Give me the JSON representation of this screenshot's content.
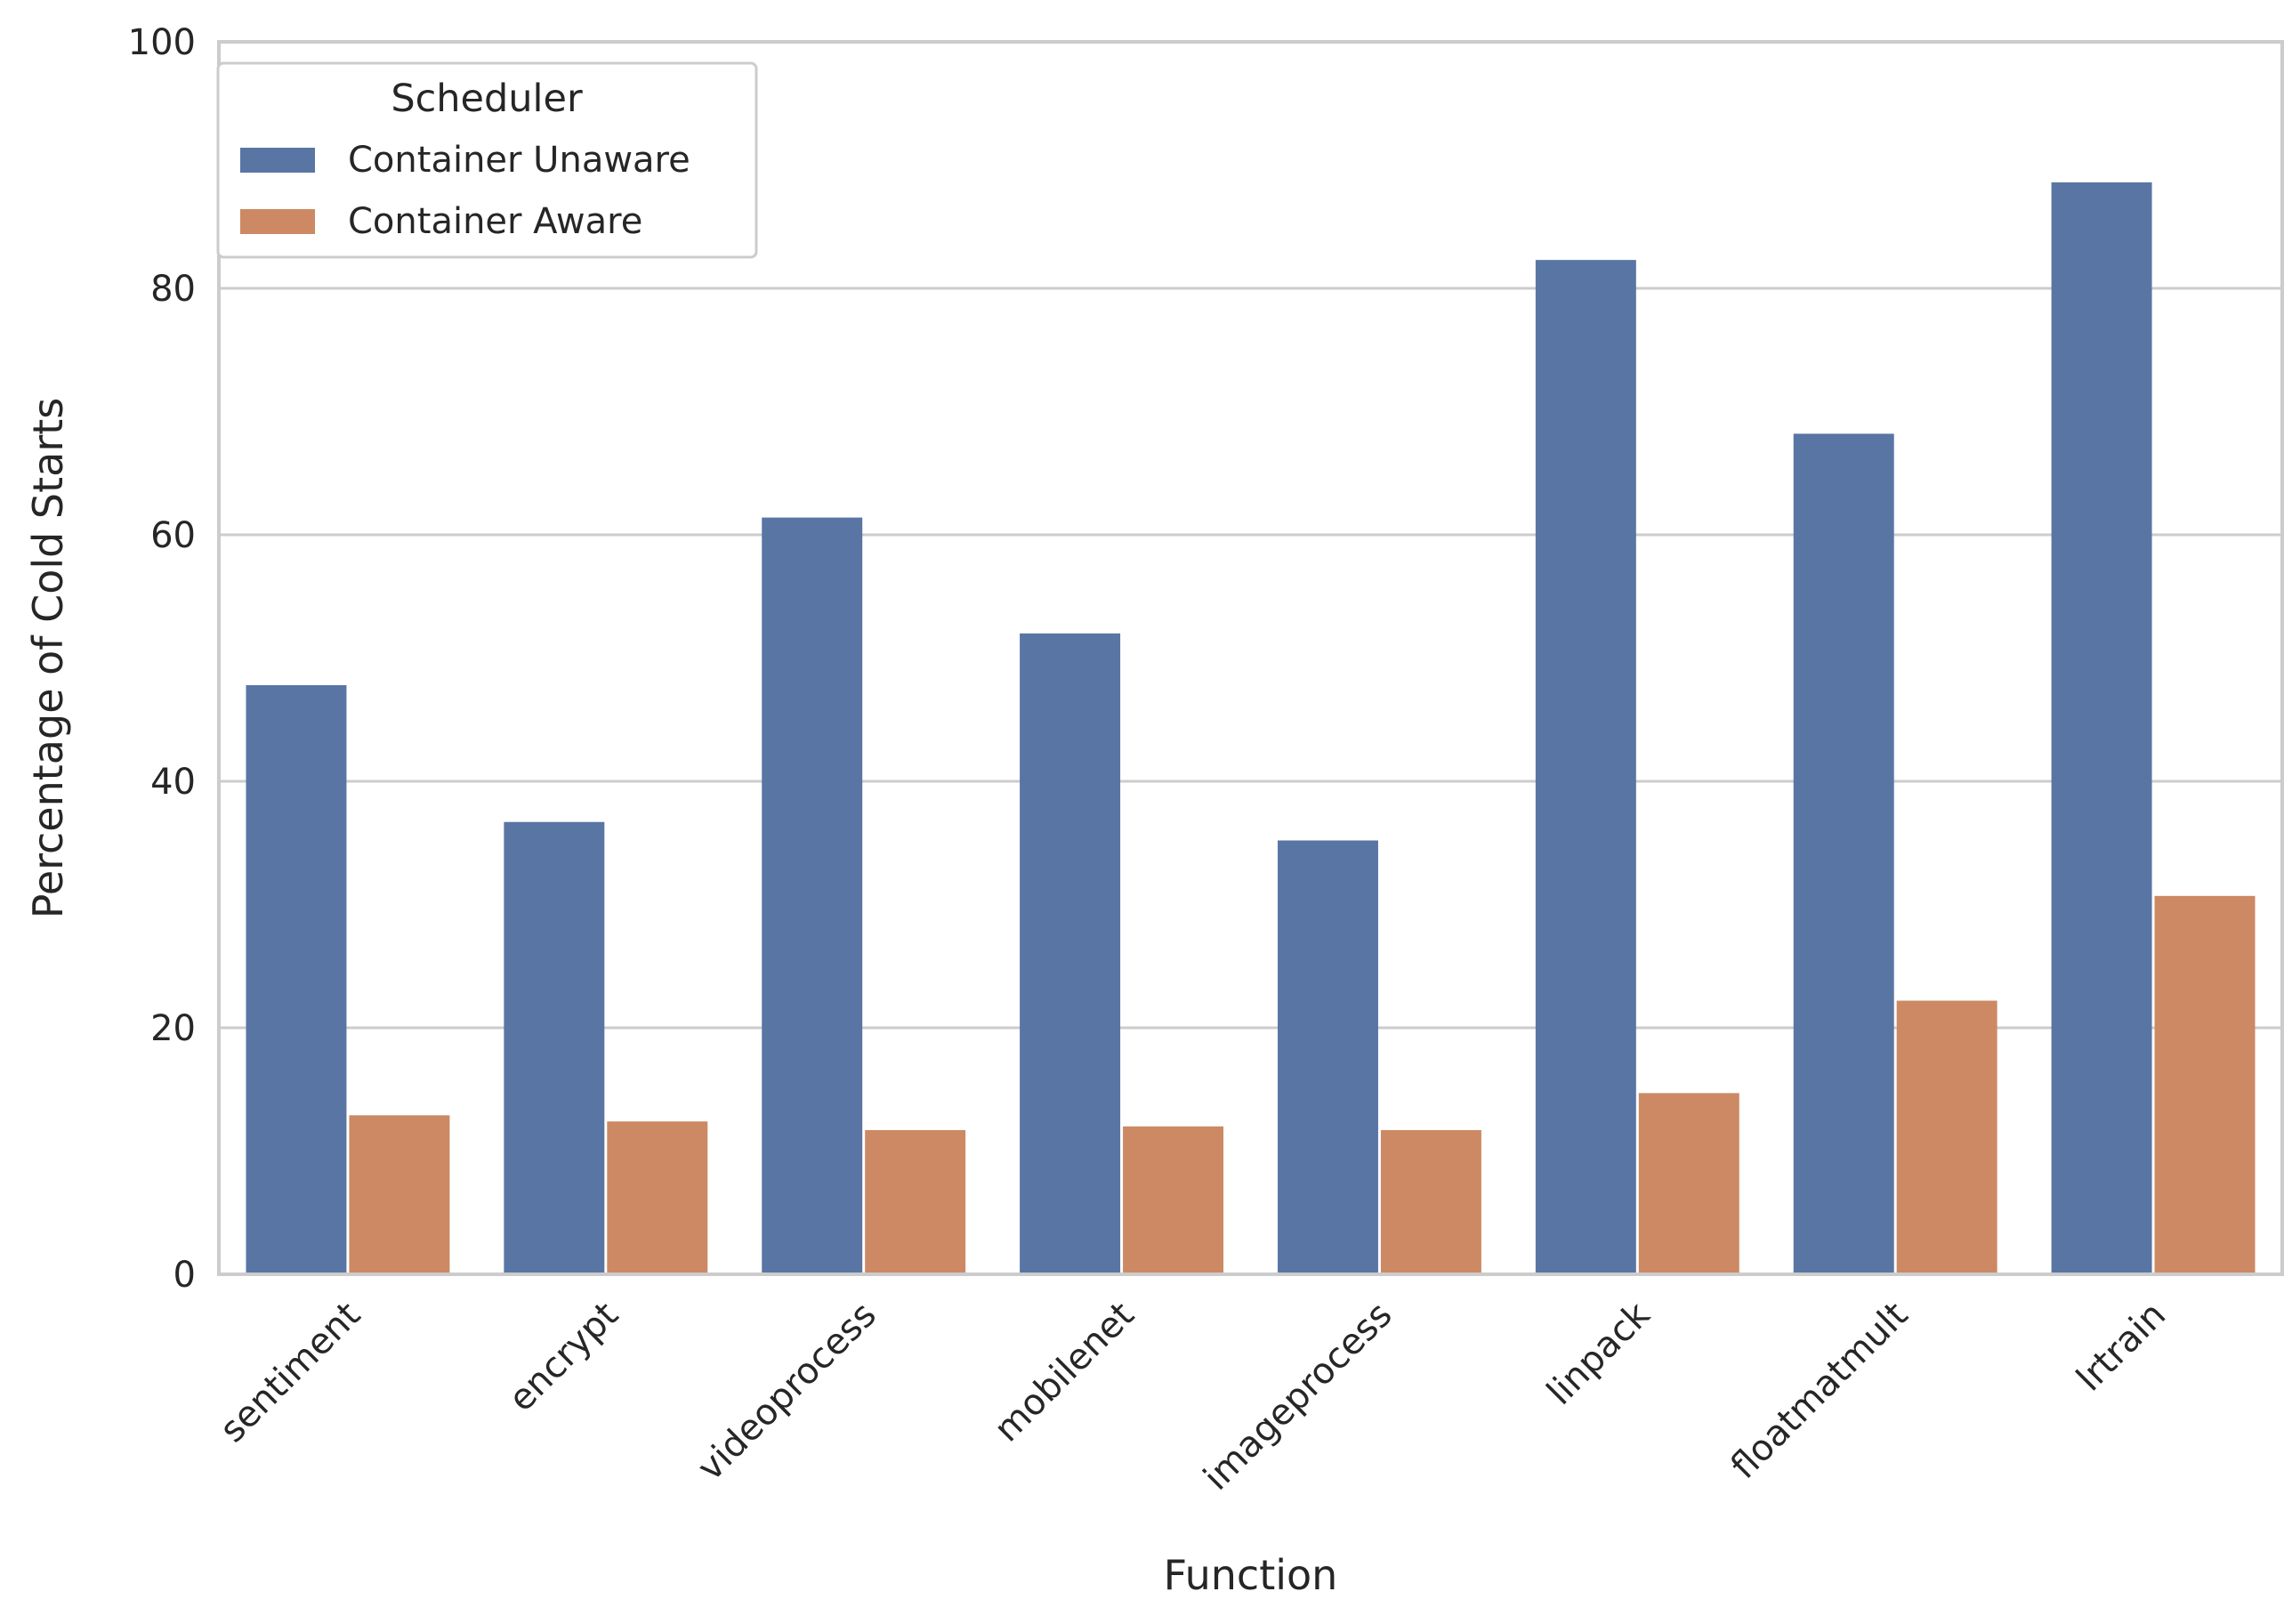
{
  "chart_data": {
    "type": "bar",
    "xlabel": "Function",
    "ylabel": "Percentage of Cold Starts",
    "ylim": [
      0,
      100
    ],
    "yticks": [
      0,
      20,
      40,
      60,
      80,
      100
    ],
    "grid": "horizontal",
    "legend_title": "Scheduler",
    "legend_position": "top-left",
    "categories": [
      "sentiment",
      "encrypt",
      "videoprocess",
      "mobilenet",
      "imageprocess",
      "linpack",
      "floatmatmult",
      "lrtrain"
    ],
    "series": [
      {
        "name": "Container Unaware",
        "color": "#5975a4",
        "values": [
          47.8,
          36.7,
          61.4,
          52.0,
          35.2,
          82.3,
          68.2,
          88.6
        ]
      },
      {
        "name": "Container Aware",
        "color": "#cc8963",
        "values": [
          12.9,
          12.4,
          11.7,
          12.0,
          11.7,
          14.7,
          22.2,
          30.7
        ]
      }
    ]
  }
}
